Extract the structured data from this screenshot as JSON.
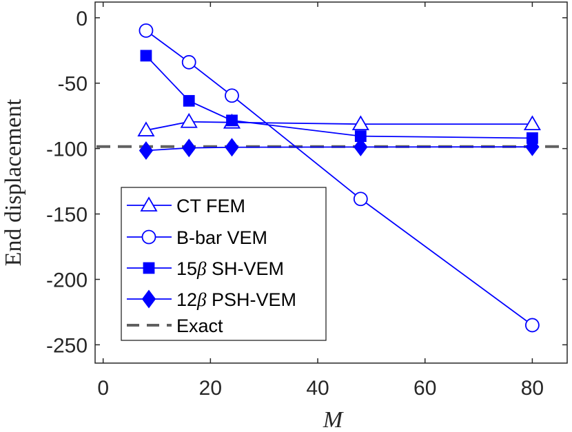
{
  "chart_data": {
    "type": "line",
    "title": "",
    "xlabel": "M",
    "ylabel": "End displacement",
    "xlim": [
      -1.5,
      86.5
    ],
    "ylim": [
      -264,
      12
    ],
    "xticks": [
      0,
      20,
      40,
      60,
      80
    ],
    "yticks": [
      0,
      -50,
      -100,
      -150,
      -200,
      -250
    ],
    "xtick_labels": [
      "0",
      "20",
      "40",
      "60",
      "80"
    ],
    "ytick_labels": [
      "0",
      "-50",
      "-100",
      "-150",
      "-200",
      "-250"
    ],
    "grid": false,
    "legend_position": "lower-left",
    "series": [
      {
        "name": "CT FEM",
        "label_main": "CT FEM",
        "label_beta": "",
        "label_rest": "",
        "marker": "triangle",
        "filled": false,
        "color": "#0000ff",
        "x": [
          8,
          16,
          24,
          48,
          80
        ],
        "values": [
          -86,
          -79.5,
          -80,
          -81.3,
          -81.3
        ]
      },
      {
        "name": "B-bar VEM",
        "label_main": "B-bar VEM",
        "label_beta": "",
        "label_rest": "",
        "marker": "circle",
        "filled": false,
        "color": "#0000ff",
        "x": [
          8,
          16,
          24,
          48,
          80
        ],
        "values": [
          -9.8,
          -34,
          -59.5,
          -138.5,
          -235
        ]
      },
      {
        "name": "15β SH-VEM",
        "label_main": "15",
        "label_beta": "β",
        "label_rest": " SH-VEM",
        "marker": "square",
        "filled": true,
        "color": "#0000ff",
        "x": [
          8,
          16,
          24,
          48,
          80
        ],
        "values": [
          -29,
          -63.5,
          -78.5,
          -90.5,
          -92
        ]
      },
      {
        "name": "12β PSH-VEM",
        "label_main": "12",
        "label_beta": "β",
        "label_rest": " PSH-VEM",
        "marker": "diamond",
        "filled": true,
        "color": "#0000ff",
        "x": [
          8,
          16,
          24,
          48,
          80
        ],
        "values": [
          -101.5,
          -99.5,
          -99,
          -98.8,
          -98.7
        ]
      }
    ],
    "reference": {
      "name": "Exact",
      "value": -98.5,
      "color": "#606060",
      "style": "dashed"
    }
  },
  "colors": {
    "series": "#0000ff",
    "exact": "#606060",
    "axes": "#262626"
  }
}
